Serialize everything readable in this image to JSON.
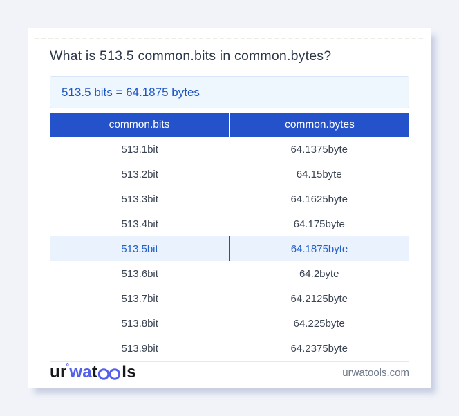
{
  "colors": {
    "page_bg": "#f1f3f9",
    "accent": "#2452cb",
    "title": "#2b3647",
    "cell": "#3b4453",
    "answer_bg": "#eef6fe",
    "answer_border": "#d8e6f7",
    "answer_text": "#1d55c4",
    "highlight_bg": "#e9f2fd",
    "highlight_text": "#2160c9",
    "highlight_divider": "#1d4fbe",
    "table_border": "#e4e8ee",
    "muted": "#6e7a8a",
    "logo_dark": "#17181c",
    "logo_blue": "#5360ec"
  },
  "card": {
    "title": "What is 513.5 common.bits in common.bytes?",
    "answer": "513.5 bits = 64.1875 bytes"
  },
  "table": {
    "headers": [
      "common.bits",
      "common.bytes"
    ],
    "rows": [
      {
        "bits": "513.1bit",
        "bytes": "64.1375byte",
        "highlighted": false
      },
      {
        "bits": "513.2bit",
        "bytes": "64.15byte",
        "highlighted": false
      },
      {
        "bits": "513.3bit",
        "bytes": "64.1625byte",
        "highlighted": false
      },
      {
        "bits": "513.4bit",
        "bytes": "64.175byte",
        "highlighted": false
      },
      {
        "bits": "513.5bit",
        "bytes": "64.1875byte",
        "highlighted": true
      },
      {
        "bits": "513.6bit",
        "bytes": "64.2byte",
        "highlighted": false
      },
      {
        "bits": "513.7bit",
        "bytes": "64.2125byte",
        "highlighted": false
      },
      {
        "bits": "513.8bit",
        "bytes": "64.225byte",
        "highlighted": false
      },
      {
        "bits": "513.9bit",
        "bytes": "64.2375byte",
        "highlighted": false
      }
    ]
  },
  "footer": {
    "logo": {
      "prefix": "ur",
      "degree_mark": "°",
      "mid": "wa",
      "t": "t",
      "oo_icon": "glasses-oo-icon",
      "suffix": "ls"
    },
    "domain": "urwatools.com"
  }
}
